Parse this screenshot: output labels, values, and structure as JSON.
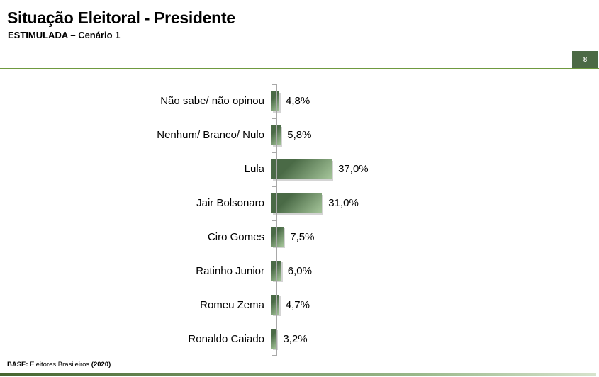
{
  "header": {
    "title": "Situação Eleitoral - Presidente",
    "subtitle": "ESTIMULADA – Cenário 1",
    "page_number": "8",
    "accent_color": "#6f9a3f",
    "badge_color": "#4c6a45"
  },
  "chart_data": {
    "type": "bar",
    "orientation": "horizontal",
    "title": "Situação Eleitoral - Presidente",
    "subtitle": "ESTIMULADA – Cenário 1",
    "xlabel": "",
    "ylabel": "",
    "xlim": [
      0,
      100
    ],
    "grid": false,
    "legend": false,
    "categories": [
      "Não sabe/ não opinou",
      "Nenhum/ Branco/ Nulo",
      "Lula",
      "Jair Bolsonaro",
      "Ciro Gomes",
      "Ratinho Junior",
      "Romeu Zema",
      "Ronaldo Caiado"
    ],
    "values": [
      4.8,
      5.8,
      37.0,
      31.0,
      7.5,
      6.0,
      4.7,
      3.2
    ],
    "value_labels": [
      "4,8%",
      "5,8%",
      "37,0%",
      "31,0%",
      "7,5%",
      "6,0%",
      "4,7%",
      "3,2%"
    ],
    "bar_color_dark": "#4a6a46",
    "bar_color_light": "#a6c69b",
    "axis_color": "#a8a8a8"
  },
  "footer": {
    "base_label": "BASE:",
    "base_text": " Eleitores Brasileiros ",
    "base_year": "(2020)"
  }
}
